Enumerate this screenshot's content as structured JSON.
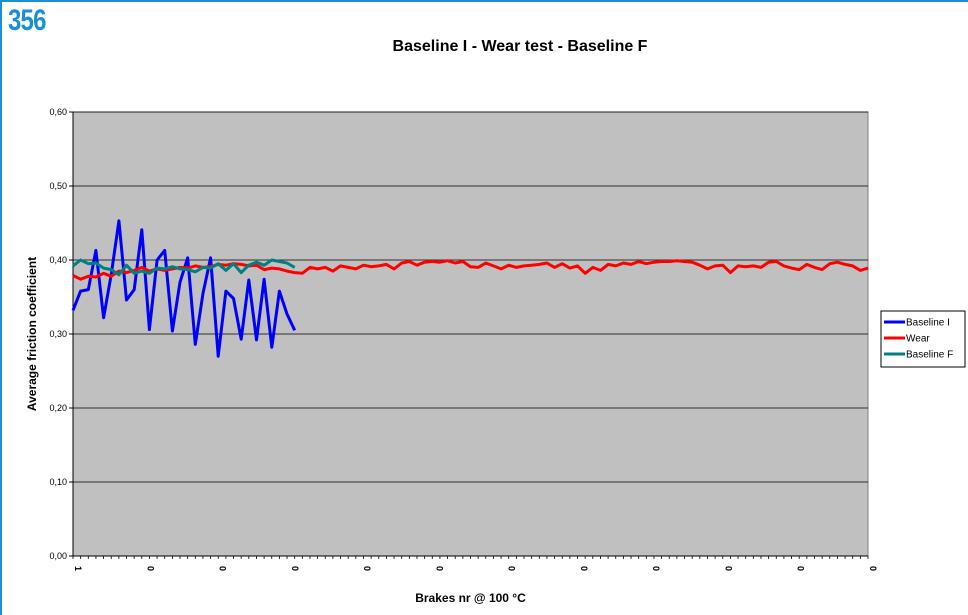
{
  "figure_number": "356",
  "chart_data": {
    "type": "line",
    "title": "Baseline I - Wear test - Baseline F",
    "xlabel": "Brakes nr @ 100 °C",
    "ylabel": "Average friction coefficient",
    "ylim": [
      0,
      0.6
    ],
    "yticks": [
      "0,00",
      "0,10",
      "0,20",
      "0,30",
      "0,40",
      "0,50",
      "0,60"
    ],
    "x_tick_labels": [
      "1",
      "0",
      "0",
      "0",
      "0",
      "0",
      "0",
      "0",
      "0",
      "0",
      "0",
      "0"
    ],
    "plot_background": "#c0c0c0",
    "grid": true,
    "legend_position": "right",
    "series": [
      {
        "name": "Baseline I",
        "color": "#0000ff",
        "values": [
          0.332,
          0.358,
          0.36,
          0.413,
          0.322,
          0.38,
          0.453,
          0.346,
          0.36,
          0.441,
          0.306,
          0.4,
          0.413,
          0.304,
          0.37,
          0.403,
          0.286,
          0.355,
          0.403,
          0.27,
          0.358,
          0.348,
          0.293,
          0.373,
          0.292,
          0.374,
          0.282,
          0.358,
          0.327,
          0.305
        ]
      },
      {
        "name": "Wear",
        "color": "#ff0000",
        "values": [
          0.379,
          0.374,
          0.378,
          0.377,
          0.382,
          0.378,
          0.385,
          0.383,
          0.386,
          0.39,
          0.385,
          0.388,
          0.386,
          0.388,
          0.39,
          0.389,
          0.392,
          0.39,
          0.391,
          0.394,
          0.393,
          0.395,
          0.394,
          0.392,
          0.393,
          0.387,
          0.389,
          0.388,
          0.385,
          0.383,
          0.382,
          0.39,
          0.388,
          0.39,
          0.385,
          0.392,
          0.39,
          0.388,
          0.393,
          0.391,
          0.392,
          0.394,
          0.388,
          0.396,
          0.398,
          0.393,
          0.397,
          0.398,
          0.397,
          0.399,
          0.396,
          0.398,
          0.391,
          0.39,
          0.396,
          0.392,
          0.388,
          0.393,
          0.39,
          0.392,
          0.393,
          0.394,
          0.396,
          0.39,
          0.395,
          0.389,
          0.392,
          0.382,
          0.39,
          0.386,
          0.394,
          0.392,
          0.396,
          0.394,
          0.398,
          0.395,
          0.397,
          0.398,
          0.398,
          0.399,
          0.398,
          0.397,
          0.393,
          0.388,
          0.392,
          0.393,
          0.383,
          0.392,
          0.391,
          0.392,
          0.39,
          0.397,
          0.398,
          0.392,
          0.389,
          0.387,
          0.394,
          0.39,
          0.387,
          0.395,
          0.397,
          0.394,
          0.392,
          0.386,
          0.389
        ]
      },
      {
        "name": "Baseline F",
        "color": "#008080",
        "values": [
          0.392,
          0.4,
          0.395,
          0.396,
          0.389,
          0.387,
          0.38,
          0.393,
          0.382,
          0.385,
          0.382,
          0.389,
          0.388,
          0.391,
          0.388,
          0.387,
          0.384,
          0.39,
          0.389,
          0.395,
          0.386,
          0.395,
          0.383,
          0.393,
          0.397,
          0.393,
          0.4,
          0.398,
          0.396,
          0.39
        ]
      }
    ]
  }
}
